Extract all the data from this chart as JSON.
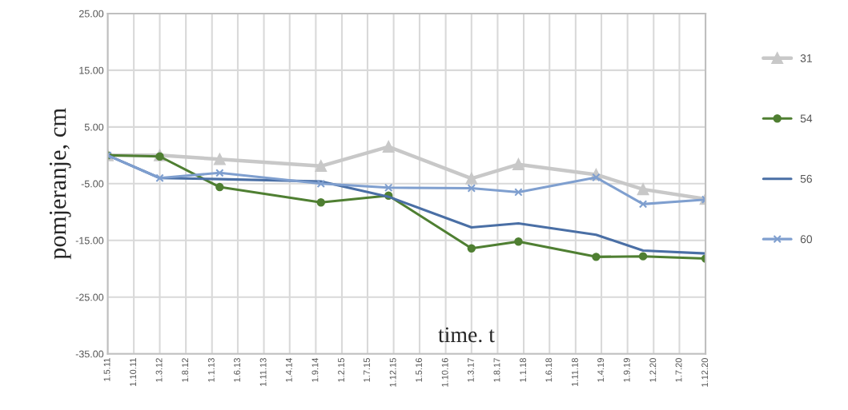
{
  "chart_data": {
    "type": "line",
    "xlabel": "time. t",
    "ylabel": "pomjeranje, cm",
    "x": [
      "2011-05-01",
      "2012-03-01",
      "2013-02-15",
      "2014-10-01",
      "2015-11-01",
      "2017-03-01",
      "2017-12-01",
      "2019-03-01",
      "2019-12-01",
      "2020-12-01"
    ],
    "series": [
      {
        "name": "31",
        "color": "#c8c8c8",
        "marker": "triangle",
        "values": [
          0,
          0,
          -0.7,
          -1.9,
          1.5,
          -4.1,
          -1.6,
          -3.4,
          -6.0,
          -7.7
        ]
      },
      {
        "name": "54",
        "color": "#4f7f32",
        "marker": "circle",
        "values": [
          0,
          -0.2,
          -5.6,
          -8.3,
          -7.1,
          -16.4,
          -15.2,
          -17.9,
          -17.8,
          -18.2
        ]
      },
      {
        "name": "56",
        "color": "#4a6fa5",
        "marker": "none",
        "values": [
          0,
          -4.0,
          -4.2,
          -4.6,
          -7.3,
          -12.7,
          -12.0,
          -14.0,
          -16.8,
          -17.3
        ]
      },
      {
        "name": "60",
        "color": "#7f9fcf",
        "marker": "cross",
        "values": [
          0,
          -4.0,
          -3.1,
          -5.0,
          -5.7,
          -5.8,
          -6.5,
          -3.9,
          -8.6,
          -7.8
        ]
      }
    ],
    "xlim": [
      "2011-05-01",
      "2020-12-01"
    ],
    "xticks": [
      {
        "value": "2011-05-01",
        "label": "1.5.11"
      },
      {
        "value": "2011-10-01",
        "label": "1.10.11"
      },
      {
        "value": "2012-03-01",
        "label": "1.3.12"
      },
      {
        "value": "2012-08-01",
        "label": "1.8.12"
      },
      {
        "value": "2013-01-01",
        "label": "1.1.13"
      },
      {
        "value": "2013-06-01",
        "label": "1.6.13"
      },
      {
        "value": "2013-11-01",
        "label": "1.11.13"
      },
      {
        "value": "2014-04-01",
        "label": "1.4.14"
      },
      {
        "value": "2014-09-01",
        "label": "1.9.14"
      },
      {
        "value": "2015-02-01",
        "label": "1.2.15"
      },
      {
        "value": "2015-07-01",
        "label": "1.7.15"
      },
      {
        "value": "2015-12-01",
        "label": "1.12.15"
      },
      {
        "value": "2016-05-01",
        "label": "1.5.16"
      },
      {
        "value": "2016-10-01",
        "label": "1.10.16"
      },
      {
        "value": "2017-03-01",
        "label": "1.3.17"
      },
      {
        "value": "2017-08-01",
        "label": "1.8.17"
      },
      {
        "value": "2018-01-01",
        "label": "1.1.18"
      },
      {
        "value": "2018-06-01",
        "label": "1.6.18"
      },
      {
        "value": "2018-11-01",
        "label": "1.11.18"
      },
      {
        "value": "2019-04-01",
        "label": "1.4.19"
      },
      {
        "value": "2019-09-01",
        "label": "1.9.19"
      },
      {
        "value": "2020-02-01",
        "label": "1.2.20"
      },
      {
        "value": "2020-07-01",
        "label": "1.7.20"
      },
      {
        "value": "2020-12-01",
        "label": "1.12.20"
      }
    ],
    "ylim": [
      -35,
      25
    ],
    "yticks": [
      {
        "value": 25,
        "label": "25.00"
      },
      {
        "value": 15,
        "label": "15.00"
      },
      {
        "value": 5,
        "label": "5.00"
      },
      {
        "value": -5,
        "label": "-5.00"
      },
      {
        "value": -15,
        "label": "-15.00"
      },
      {
        "value": -25,
        "label": "-25.00"
      },
      {
        "value": -35,
        "label": "-35.00"
      }
    ],
    "grid": true,
    "legend": "right"
  }
}
